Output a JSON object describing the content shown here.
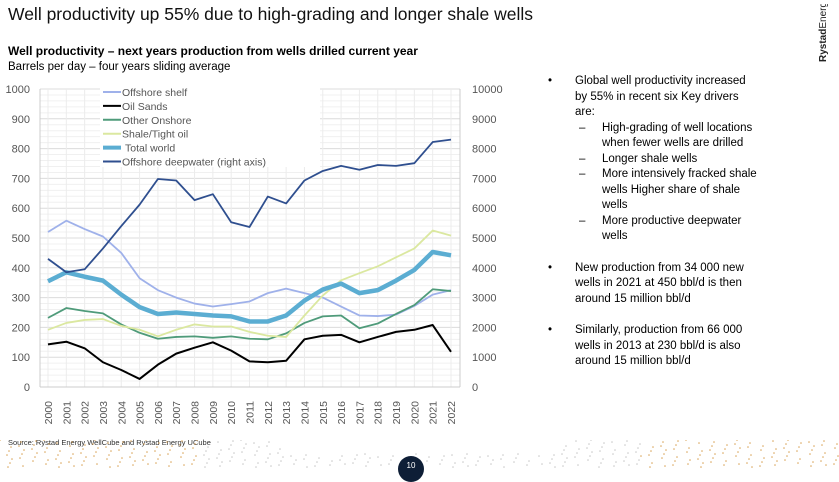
{
  "title": "Well productivity up 55% due to high-grading and longer shale wells",
  "logo": "Rystad Energy",
  "subtitle": "Well productivity – next years production from wells drilled current year",
  "units": "Barrels per day – four years sliding average",
  "chart_data": {
    "type": "line",
    "title": "Well productivity – next years production from wells drilled current year",
    "ylabel": "Barrels per day – four years sliding average",
    "x": [
      "2000",
      "2001",
      "2002",
      "2003",
      "2004",
      "2005",
      "2006",
      "2007",
      "2008",
      "2009",
      "2010",
      "2011",
      "2012",
      "2013",
      "2014",
      "2015",
      "2016",
      "2017",
      "2018",
      "2019",
      "2020",
      "2021",
      "2022"
    ],
    "ylim": [
      0,
      1000
    ],
    "y_ticks": [
      "0",
      "100",
      "200",
      "300",
      "400",
      "500",
      "600",
      "700",
      "800",
      "900",
      "1000"
    ],
    "y2lim": [
      0,
      10000
    ],
    "y2_ticks": [
      "0",
      "1000",
      "2000",
      "3000",
      "4000",
      "5000",
      "6000",
      "7000",
      "8000",
      "9000",
      "10000"
    ],
    "grid": true,
    "legend": "top-left",
    "series": [
      {
        "name": "Offshore shelf",
        "color": "#9fb1ea",
        "axis": "left",
        "values": [
          520,
          558,
          530,
          505,
          450,
          365,
          325,
          300,
          280,
          270,
          278,
          287,
          315,
          330,
          315,
          300,
          270,
          240,
          238,
          243,
          272,
          310,
          325
        ]
      },
      {
        "name": "Oil Sands",
        "color": "#000000",
        "axis": "left",
        "values": [
          143,
          152,
          130,
          83,
          57,
          27,
          75,
          112,
          132,
          150,
          122,
          86,
          83,
          88,
          160,
          172,
          175,
          150,
          168,
          185,
          192,
          208,
          118
        ]
      },
      {
        "name": "Other Onshore",
        "color": "#4f9b7a",
        "axis": "left",
        "values": [
          232,
          265,
          255,
          247,
          210,
          182,
          162,
          168,
          170,
          165,
          170,
          162,
          160,
          180,
          215,
          237,
          240,
          197,
          213,
          245,
          275,
          328,
          322
        ]
      },
      {
        "name": "Shale/Tight oil",
        "color": "#dbe8a0",
        "axis": "left",
        "values": [
          192,
          215,
          225,
          228,
          205,
          192,
          170,
          192,
          210,
          203,
          203,
          185,
          172,
          168,
          240,
          307,
          358,
          382,
          405,
          435,
          465,
          525,
          508
        ]
      },
      {
        "name": "Total world",
        "color": "#5badd2",
        "axis": "left",
        "thick": true,
        "values": [
          355,
          385,
          370,
          357,
          310,
          268,
          245,
          250,
          245,
          240,
          237,
          220,
          220,
          240,
          290,
          327,
          347,
          315,
          325,
          357,
          393,
          453,
          442
        ]
      },
      {
        "name": "Offshore deepwater (right axis)",
        "color": "#2f4f8f",
        "axis": "right",
        "values": [
          4300,
          3850,
          3950,
          4650,
          5400,
          6120,
          6980,
          6930,
          6270,
          6470,
          5530,
          5370,
          6390,
          6160,
          6930,
          7250,
          7420,
          7290,
          7450,
          7420,
          7510,
          8220,
          8300
        ]
      }
    ]
  },
  "bullets": [
    {
      "text": "Global well productivity increased by 55% in recent six Key drivers are:",
      "sub": [
        "High-grading of well locations when fewer wells are drilled",
        "Longer shale wells",
        "More intensively fracked shale wells Higher share of shale wells",
        "More productive deepwater wells"
      ]
    },
    {
      "text": "New production from 34 000 new wells in 2021 at 450 bbl/d is then around 15 million bbl/d",
      "sub": []
    },
    {
      "text": "Similarly, production from 66 000 wells in 2013 at 230 bbl/d is also around 15 million bbl/d",
      "sub": []
    }
  ],
  "source": "Source: Rystad Energy WellCube and Rystad Energy UCube",
  "page_number": "10"
}
